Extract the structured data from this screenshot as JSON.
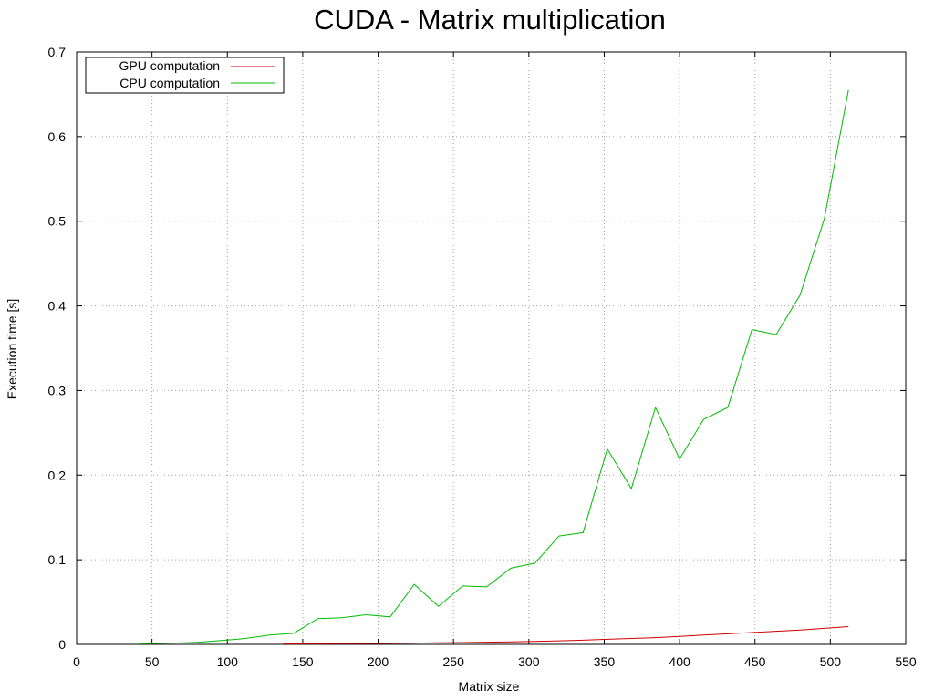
{
  "chart_data": {
    "type": "line",
    "title": "CUDA - Matrix multiplication",
    "xlabel": "Matrix size",
    "ylabel": "Execution time [s]",
    "xlim": [
      0,
      550
    ],
    "ylim": [
      0,
      0.7
    ],
    "xticks": [
      0,
      50,
      100,
      150,
      200,
      250,
      300,
      350,
      400,
      450,
      500,
      550
    ],
    "yticks": [
      0,
      0.1,
      0.2,
      0.3,
      0.4,
      0.5,
      0.6,
      0.7
    ],
    "grid": true,
    "legend_position": "top-left",
    "series": [
      {
        "name": "GPU computation",
        "color": "#cc0000",
        "x": [
          137,
          160,
          176,
          192,
          208,
          224,
          240,
          256,
          272,
          288,
          304,
          320,
          336,
          352,
          368,
          384,
          400,
          416,
          432,
          448,
          464,
          480,
          496,
          512
        ],
        "y": [
          0.0005,
          0.0007,
          0.0008,
          0.001,
          0.0012,
          0.0015,
          0.0018,
          0.0022,
          0.0026,
          0.003,
          0.0035,
          0.0042,
          0.005,
          0.006,
          0.007,
          0.008,
          0.0095,
          0.011,
          0.0125,
          0.014,
          0.0155,
          0.017,
          0.019,
          0.021
        ]
      },
      {
        "name": "CPU computation",
        "color": "#00bb00",
        "x": [
          41,
          48,
          64,
          80,
          96,
          112,
          128,
          144,
          160,
          176,
          192,
          208,
          224,
          240,
          256,
          272,
          288,
          304,
          320,
          336,
          352,
          368,
          384,
          400,
          416,
          432,
          448,
          464,
          480,
          496,
          512
        ],
        "y": [
          0.0005,
          0.001,
          0.0015,
          0.0025,
          0.0045,
          0.007,
          0.011,
          0.013,
          0.0305,
          0.0315,
          0.035,
          0.0325,
          0.071,
          0.045,
          0.069,
          0.068,
          0.09,
          0.096,
          0.128,
          0.132,
          0.231,
          0.184,
          0.28,
          0.219,
          0.266,
          0.28,
          0.372,
          0.366,
          0.413,
          0.503,
          0.655
        ]
      }
    ]
  }
}
